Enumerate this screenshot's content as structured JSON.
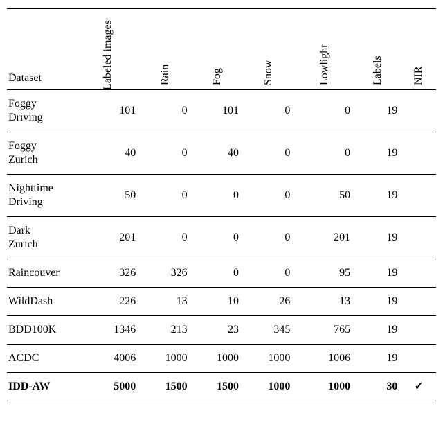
{
  "header": {
    "dataset": "Dataset",
    "labeled_images": "Labeled images",
    "rain": "Rain",
    "fog": "Fog",
    "snow": "Snow",
    "lowlight": "Lowlight",
    "labels": "Labels",
    "nir": "NIR"
  },
  "rows": [
    {
      "name_l1": "Foggy",
      "name_l2": "Driving",
      "labeled_images": "101",
      "rain": "0",
      "fog": "101",
      "snow": "0",
      "lowlight": "0",
      "labels": "19",
      "nir": "",
      "bold": false
    },
    {
      "name_l1": "Foggy",
      "name_l2": "Zurich",
      "labeled_images": "40",
      "rain": "0",
      "fog": "40",
      "snow": "0",
      "lowlight": "0",
      "labels": "19",
      "nir": "",
      "bold": false
    },
    {
      "name_l1": "Nighttime",
      "name_l2": "Driving",
      "labeled_images": "50",
      "rain": "0",
      "fog": "0",
      "snow": "0",
      "lowlight": "50",
      "labels": "19",
      "nir": "",
      "bold": false
    },
    {
      "name_l1": "Dark",
      "name_l2": "Zurich",
      "labeled_images": "201",
      "rain": "0",
      "fog": "0",
      "snow": "0",
      "lowlight": "201",
      "labels": "19",
      "nir": "",
      "bold": false
    },
    {
      "name_l1": "Raincouver",
      "name_l2": "",
      "labeled_images": "326",
      "rain": "326",
      "fog": "0",
      "snow": "0",
      "lowlight": "95",
      "labels": "19",
      "nir": "",
      "bold": false
    },
    {
      "name_l1": "WildDash",
      "name_l2": "",
      "labeled_images": "226",
      "rain": "13",
      "fog": "10",
      "snow": "26",
      "lowlight": "13",
      "labels": "19",
      "nir": "",
      "bold": false
    },
    {
      "name_l1": "BDD100K",
      "name_l2": "",
      "labeled_images": "1346",
      "rain": "213",
      "fog": "23",
      "snow": "345",
      "lowlight": "765",
      "labels": "19",
      "nir": "",
      "bold": false
    },
    {
      "name_l1": "ACDC",
      "name_l2": "",
      "labeled_images": "4006",
      "rain": "1000",
      "fog": "1000",
      "snow": "1000",
      "lowlight": "1006",
      "labels": "19",
      "nir": "",
      "bold": false
    },
    {
      "name_l1": "IDD-AW",
      "name_l2": "",
      "labeled_images": "5000",
      "rain": "1500",
      "fog": "1500",
      "snow": "1000",
      "lowlight": "1000",
      "labels": "30",
      "nir": "✓",
      "bold": true
    }
  ],
  "columns": [
    "labeled_images",
    "rain",
    "fog",
    "snow",
    "lowlight",
    "labels",
    "nir"
  ],
  "col_widths": {
    "name": "16%",
    "labeled_images": "15%",
    "rain": "12%",
    "fog": "12%",
    "snow": "12%",
    "lowlight": "14%",
    "labels": "11%",
    "nir": "8%"
  }
}
